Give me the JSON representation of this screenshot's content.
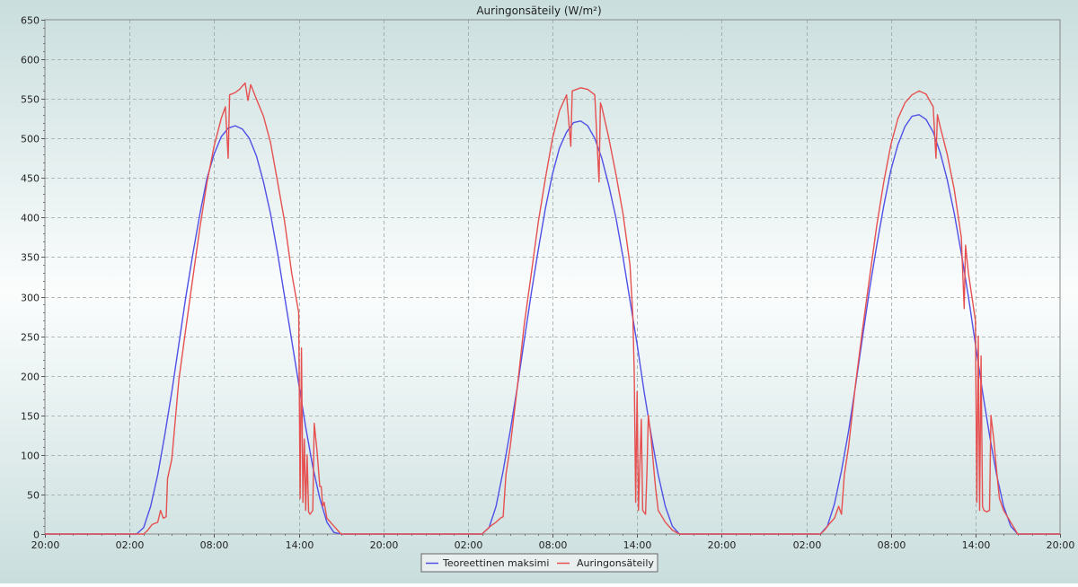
{
  "chart_data": {
    "type": "line",
    "title": "Auringonsäteily (W/m²)",
    "xlabel": "",
    "ylabel": "",
    "ylim": [
      0,
      650
    ],
    "y_ticks": [
      0,
      50,
      100,
      150,
      200,
      250,
      300,
      350,
      400,
      450,
      500,
      550,
      600,
      650
    ],
    "x_range_hours": [
      0,
      72
    ],
    "x_ticks": [
      {
        "h": 0,
        "label": "20:00"
      },
      {
        "h": 6,
        "label": "02:00"
      },
      {
        "h": 12,
        "label": "08:00"
      },
      {
        "h": 18,
        "label": "14:00"
      },
      {
        "h": 24,
        "label": "20:00"
      },
      {
        "h": 30,
        "label": "02:00"
      },
      {
        "h": 36,
        "label": "08:00"
      },
      {
        "h": 42,
        "label": "14:00"
      },
      {
        "h": 48,
        "label": "20:00"
      },
      {
        "h": 54,
        "label": "02:00"
      },
      {
        "h": 60,
        "label": "08:00"
      },
      {
        "h": 66,
        "label": "14:00"
      },
      {
        "h": 72,
        "label": "20:00"
      }
    ],
    "grid": true,
    "legend_position": "bottom-center",
    "series": [
      {
        "name": "Teoreettinen maksimi",
        "color": "#5050e6",
        "points": [
          [
            0,
            0
          ],
          [
            6.5,
            0
          ],
          [
            7.0,
            8
          ],
          [
            7.5,
            35
          ],
          [
            8.0,
            75
          ],
          [
            8.5,
            125
          ],
          [
            9.0,
            180
          ],
          [
            9.5,
            240
          ],
          [
            10.0,
            300
          ],
          [
            10.5,
            355
          ],
          [
            11.0,
            405
          ],
          [
            11.5,
            450
          ],
          [
            12.0,
            480
          ],
          [
            12.5,
            502
          ],
          [
            13.0,
            513
          ],
          [
            13.5,
            516
          ],
          [
            14.0,
            512
          ],
          [
            14.5,
            500
          ],
          [
            15.0,
            478
          ],
          [
            15.5,
            445
          ],
          [
            16.0,
            405
          ],
          [
            16.5,
            355
          ],
          [
            17.0,
            300
          ],
          [
            17.5,
            245
          ],
          [
            18.0,
            190
          ],
          [
            18.5,
            135
          ],
          [
            19.0,
            85
          ],
          [
            19.5,
            45
          ],
          [
            20.0,
            15
          ],
          [
            20.5,
            2
          ],
          [
            21.0,
            0
          ],
          [
            31.0,
            0
          ],
          [
            31.5,
            8
          ],
          [
            32.0,
            35
          ],
          [
            32.5,
            80
          ],
          [
            33.0,
            130
          ],
          [
            33.5,
            185
          ],
          [
            34.0,
            245
          ],
          [
            34.5,
            305
          ],
          [
            35.0,
            360
          ],
          [
            35.5,
            412
          ],
          [
            36.0,
            455
          ],
          [
            36.5,
            488
          ],
          [
            37.0,
            508
          ],
          [
            37.5,
            520
          ],
          [
            38.0,
            522
          ],
          [
            38.5,
            516
          ],
          [
            39.0,
            500
          ],
          [
            39.5,
            475
          ],
          [
            40.0,
            440
          ],
          [
            40.5,
            400
          ],
          [
            41.0,
            350
          ],
          [
            41.5,
            295
          ],
          [
            42.0,
            240
          ],
          [
            42.5,
            180
          ],
          [
            43.0,
            125
          ],
          [
            43.5,
            75
          ],
          [
            44.0,
            35
          ],
          [
            44.5,
            10
          ],
          [
            45.0,
            0
          ],
          [
            55.0,
            0
          ],
          [
            55.5,
            10
          ],
          [
            56.0,
            38
          ],
          [
            56.5,
            80
          ],
          [
            57.0,
            130
          ],
          [
            57.5,
            188
          ],
          [
            58.0,
            250
          ],
          [
            58.5,
            310
          ],
          [
            59.0,
            365
          ],
          [
            59.5,
            415
          ],
          [
            60.0,
            460
          ],
          [
            60.5,
            492
          ],
          [
            61.0,
            515
          ],
          [
            61.5,
            528
          ],
          [
            62.0,
            530
          ],
          [
            62.5,
            524
          ],
          [
            63.0,
            508
          ],
          [
            63.5,
            482
          ],
          [
            64.0,
            448
          ],
          [
            64.5,
            405
          ],
          [
            65.0,
            355
          ],
          [
            65.5,
            300
          ],
          [
            66.0,
            240
          ],
          [
            66.5,
            180
          ],
          [
            67.0,
            125
          ],
          [
            67.5,
            75
          ],
          [
            68.0,
            35
          ],
          [
            68.5,
            10
          ],
          [
            69.0,
            0
          ],
          [
            72,
            0
          ]
        ]
      },
      {
        "name": "Auringonsäteily",
        "color": "#e65050",
        "points": [
          [
            0,
            0
          ],
          [
            7.0,
            0
          ],
          [
            7.3,
            5
          ],
          [
            7.6,
            12
          ],
          [
            8.0,
            15
          ],
          [
            8.2,
            30
          ],
          [
            8.4,
            20
          ],
          [
            8.6,
            22
          ],
          [
            8.7,
            70
          ],
          [
            9.0,
            95
          ],
          [
            9.5,
            195
          ],
          [
            10.0,
            260
          ],
          [
            10.5,
            325
          ],
          [
            11.0,
            388
          ],
          [
            11.5,
            445
          ],
          [
            12.0,
            490
          ],
          [
            12.5,
            525
          ],
          [
            12.8,
            540
          ],
          [
            13.0,
            475
          ],
          [
            13.1,
            555
          ],
          [
            13.5,
            558
          ],
          [
            13.8,
            562
          ],
          [
            14.0,
            566
          ],
          [
            14.2,
            570
          ],
          [
            14.4,
            548
          ],
          [
            14.6,
            568
          ],
          [
            15.0,
            550
          ],
          [
            15.5,
            528
          ],
          [
            16.0,
            495
          ],
          [
            16.5,
            445
          ],
          [
            17.0,
            395
          ],
          [
            17.5,
            330
          ],
          [
            18.0,
            280
          ],
          [
            18.1,
            45
          ],
          [
            18.2,
            235
          ],
          [
            18.3,
            40
          ],
          [
            18.4,
            120
          ],
          [
            18.5,
            30
          ],
          [
            18.6,
            100
          ],
          [
            18.7,
            28
          ],
          [
            18.8,
            25
          ],
          [
            19.0,
            30
          ],
          [
            19.1,
            140
          ],
          [
            19.3,
            105
          ],
          [
            19.5,
            60
          ],
          [
            19.6,
            60
          ],
          [
            19.7,
            35
          ],
          [
            19.8,
            40
          ],
          [
            20.0,
            20
          ],
          [
            20.5,
            10
          ],
          [
            21.0,
            0
          ],
          [
            31.0,
            0
          ],
          [
            31.3,
            5
          ],
          [
            31.6,
            10
          ],
          [
            32.0,
            15
          ],
          [
            32.3,
            20
          ],
          [
            32.5,
            22
          ],
          [
            32.7,
            75
          ],
          [
            33.0,
            110
          ],
          [
            33.5,
            185
          ],
          [
            34.0,
            265
          ],
          [
            34.5,
            330
          ],
          [
            35.0,
            395
          ],
          [
            35.5,
            450
          ],
          [
            36.0,
            500
          ],
          [
            36.5,
            535
          ],
          [
            37.0,
            555
          ],
          [
            37.3,
            490
          ],
          [
            37.4,
            560
          ],
          [
            38.0,
            564
          ],
          [
            38.5,
            562
          ],
          [
            39.0,
            555
          ],
          [
            39.3,
            445
          ],
          [
            39.4,
            545
          ],
          [
            39.5,
            540
          ],
          [
            40.0,
            500
          ],
          [
            40.5,
            455
          ],
          [
            41.0,
            405
          ],
          [
            41.5,
            340
          ],
          [
            41.7,
            275
          ],
          [
            41.8,
            205
          ],
          [
            41.9,
            40
          ],
          [
            42.0,
            180
          ],
          [
            42.1,
            30
          ],
          [
            42.3,
            145
          ],
          [
            42.4,
            30
          ],
          [
            42.6,
            25
          ],
          [
            42.7,
            80
          ],
          [
            42.8,
            150
          ],
          [
            43.0,
            120
          ],
          [
            43.2,
            80
          ],
          [
            43.3,
            60
          ],
          [
            43.5,
            30
          ],
          [
            44.0,
            15
          ],
          [
            44.5,
            5
          ],
          [
            45.0,
            0
          ],
          [
            55.0,
            0
          ],
          [
            55.3,
            5
          ],
          [
            55.6,
            12
          ],
          [
            56.0,
            20
          ],
          [
            56.3,
            35
          ],
          [
            56.5,
            25
          ],
          [
            56.7,
            75
          ],
          [
            57.0,
            110
          ],
          [
            57.5,
            190
          ],
          [
            58.0,
            260
          ],
          [
            58.5,
            325
          ],
          [
            59.0,
            390
          ],
          [
            59.5,
            445
          ],
          [
            60.0,
            492
          ],
          [
            60.5,
            525
          ],
          [
            61.0,
            545
          ],
          [
            61.5,
            555
          ],
          [
            62.0,
            560
          ],
          [
            62.5,
            556
          ],
          [
            63.0,
            540
          ],
          [
            63.2,
            475
          ],
          [
            63.3,
            530
          ],
          [
            63.5,
            515
          ],
          [
            64.0,
            480
          ],
          [
            64.5,
            435
          ],
          [
            65.0,
            375
          ],
          [
            65.2,
            285
          ],
          [
            65.3,
            365
          ],
          [
            65.5,
            330
          ],
          [
            66.0,
            270
          ],
          [
            66.1,
            40
          ],
          [
            66.2,
            250
          ],
          [
            66.3,
            30
          ],
          [
            66.4,
            225
          ],
          [
            66.5,
            35
          ],
          [
            66.6,
            30
          ],
          [
            66.8,
            28
          ],
          [
            67.0,
            30
          ],
          [
            67.1,
            150
          ],
          [
            67.3,
            120
          ],
          [
            67.5,
            80
          ],
          [
            67.7,
            45
          ],
          [
            68.0,
            30
          ],
          [
            68.5,
            15
          ],
          [
            69.0,
            0
          ],
          [
            72,
            0
          ]
        ]
      }
    ]
  }
}
